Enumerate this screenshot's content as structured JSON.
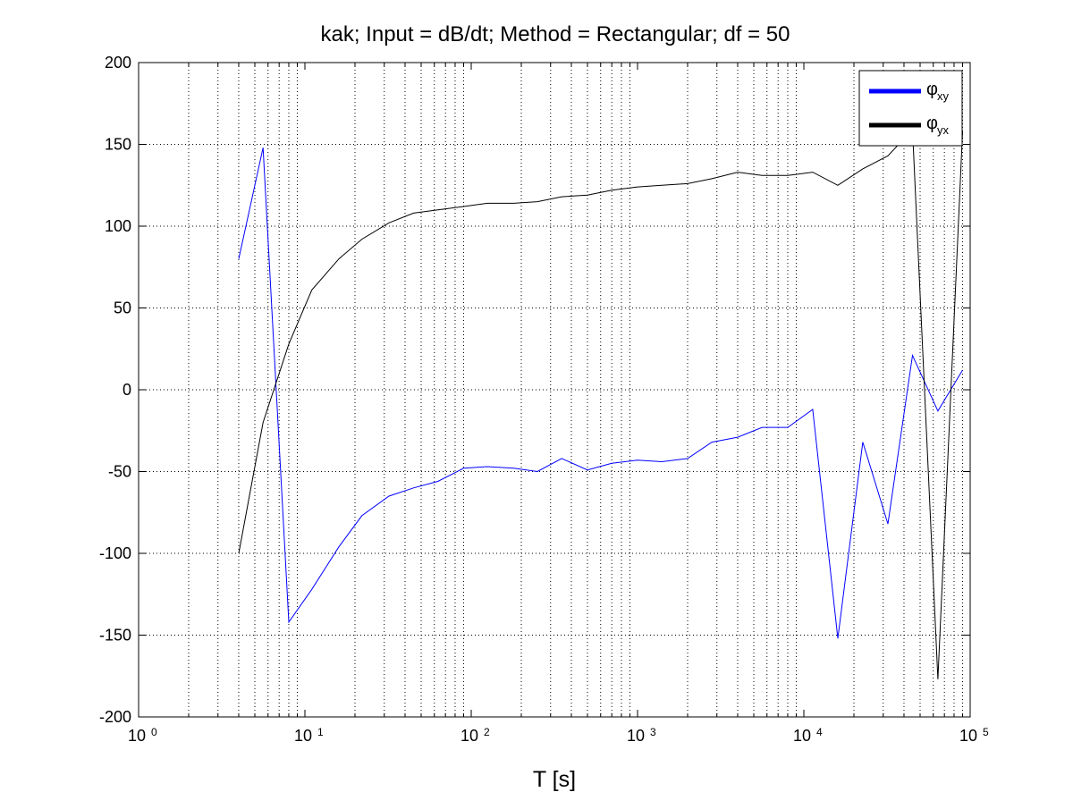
{
  "chart_data": {
    "type": "line",
    "title": "kak; Input = dB/dt; Method = Rectangular; df = 50",
    "xlabel": "T [s]",
    "ylabel": "",
    "xscale": "log",
    "xlim": [
      1,
      100000
    ],
    "ylim": [
      -200,
      200
    ],
    "grid": true,
    "legend_position": "top-right",
    "x_ticks": [
      {
        "base": "10",
        "exp": "0",
        "value": 1
      },
      {
        "base": "10",
        "exp": "1",
        "value": 10
      },
      {
        "base": "10",
        "exp": "2",
        "value": 100
      },
      {
        "base": "10",
        "exp": "3",
        "value": 1000
      },
      {
        "base": "10",
        "exp": "4",
        "value": 10000
      },
      {
        "base": "10",
        "exp": "5",
        "value": 100000
      }
    ],
    "y_ticks": [
      "200",
      "150",
      "100",
      "50",
      "0",
      "-50",
      "-100",
      "-150",
      "-200"
    ],
    "x": [
      4,
      5.6,
      8,
      11,
      16,
      22,
      32,
      45,
      63,
      90,
      125,
      180,
      250,
      350,
      500,
      700,
      1000,
      1400,
      2000,
      2800,
      4000,
      5600,
      8000,
      11300,
      16000,
      22600,
      32000,
      45000,
      64000,
      90000
    ],
    "series": [
      {
        "name": "φ",
        "sub": "xy",
        "color": "#0000ff",
        "values": [
          80,
          148,
          -142,
          -122,
          -96,
          -77,
          -65,
          -60,
          -56,
          -48,
          -47,
          -48,
          -50,
          -42,
          -49,
          -45,
          -43,
          -44,
          -42,
          -32,
          -29,
          -23,
          -23,
          -12,
          -152,
          -32,
          -82,
          21,
          -13,
          12
        ]
      },
      {
        "name": "φ",
        "sub": "yx",
        "color": "#000000",
        "values": [
          -100,
          -20,
          28,
          61,
          80,
          92,
          102,
          108,
          110,
          112,
          114,
          114,
          115,
          118,
          119,
          122,
          124,
          125,
          126,
          129,
          133,
          131,
          131,
          133,
          125,
          135,
          143,
          159,
          -177,
          158
        ]
      }
    ]
  }
}
